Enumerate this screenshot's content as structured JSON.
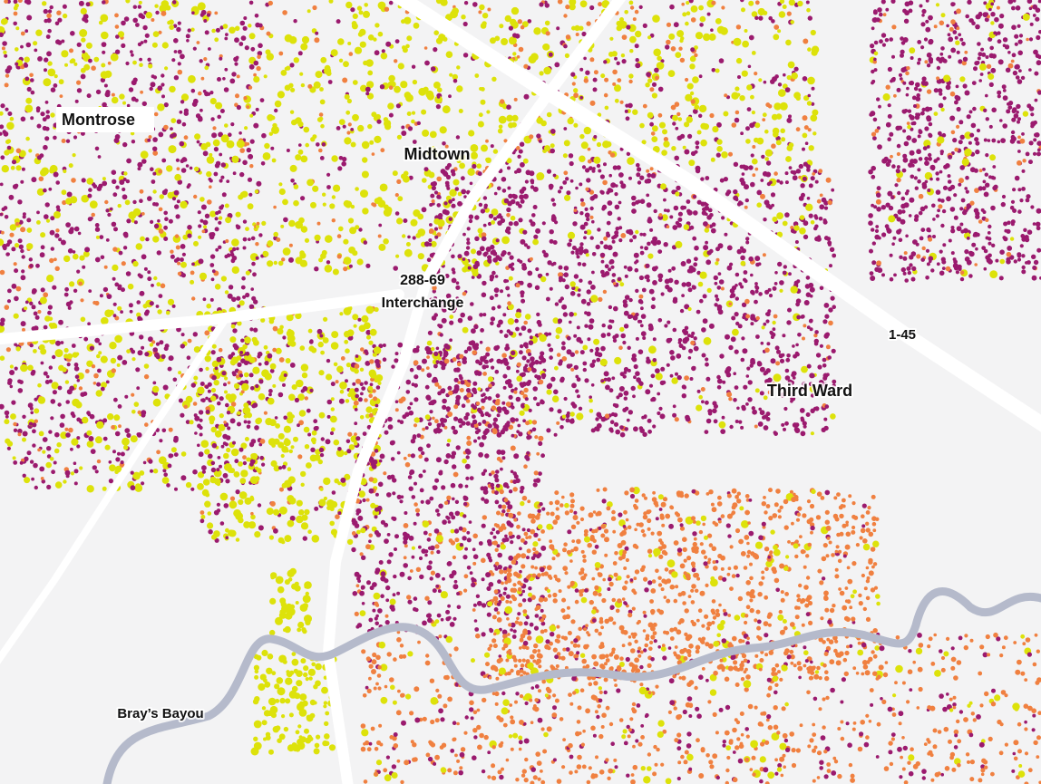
{
  "labels": {
    "montrose": "Montrose",
    "midtown": "Midtown",
    "interchange": [
      "288-69",
      "Interchange"
    ],
    "third_ward": "Third Ward",
    "highway": "1-45",
    "bayou": "Bray’s Bayou"
  }
}
